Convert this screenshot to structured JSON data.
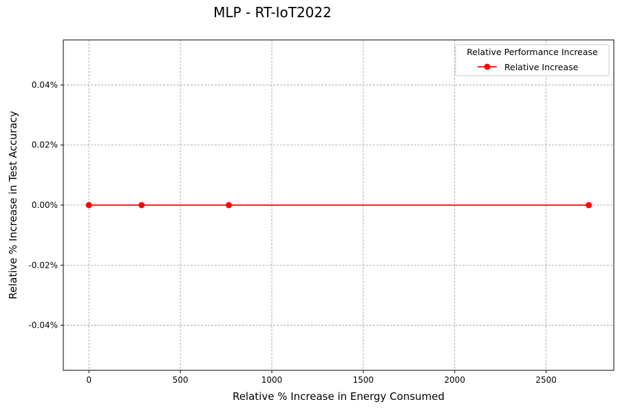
{
  "chart_data": {
    "type": "line",
    "title": "MLP - RT-IoT2022",
    "xlabel": "Relative % Increase in Energy Consumed",
    "ylabel": "Relative % Increase in Test Accuracy",
    "xlim": [
      -140,
      2870
    ],
    "ylim": [
      -0.055,
      0.055
    ],
    "x_ticks": [
      0,
      500,
      1000,
      1500,
      2000,
      2500
    ],
    "x_tick_labels": [
      "0",
      "500",
      "1000",
      "1500",
      "2000",
      "2500"
    ],
    "y_ticks": [
      0.04,
      0.02,
      0.0,
      -0.02,
      -0.04
    ],
    "y_tick_labels": [
      "0.04%",
      "0.02%",
      "0.00%",
      "-0.02%",
      "-0.04%"
    ],
    "grid": true,
    "legend": {
      "title": "Relative Performance Increase",
      "placement": "top-right"
    },
    "series": [
      {
        "name": "Relative Increase",
        "color": "#ff0000",
        "marker": "circle",
        "x": [
          0,
          288,
          765,
          2733
        ],
        "y": [
          0.0,
          0.0,
          0.0,
          0.0
        ]
      }
    ]
  }
}
